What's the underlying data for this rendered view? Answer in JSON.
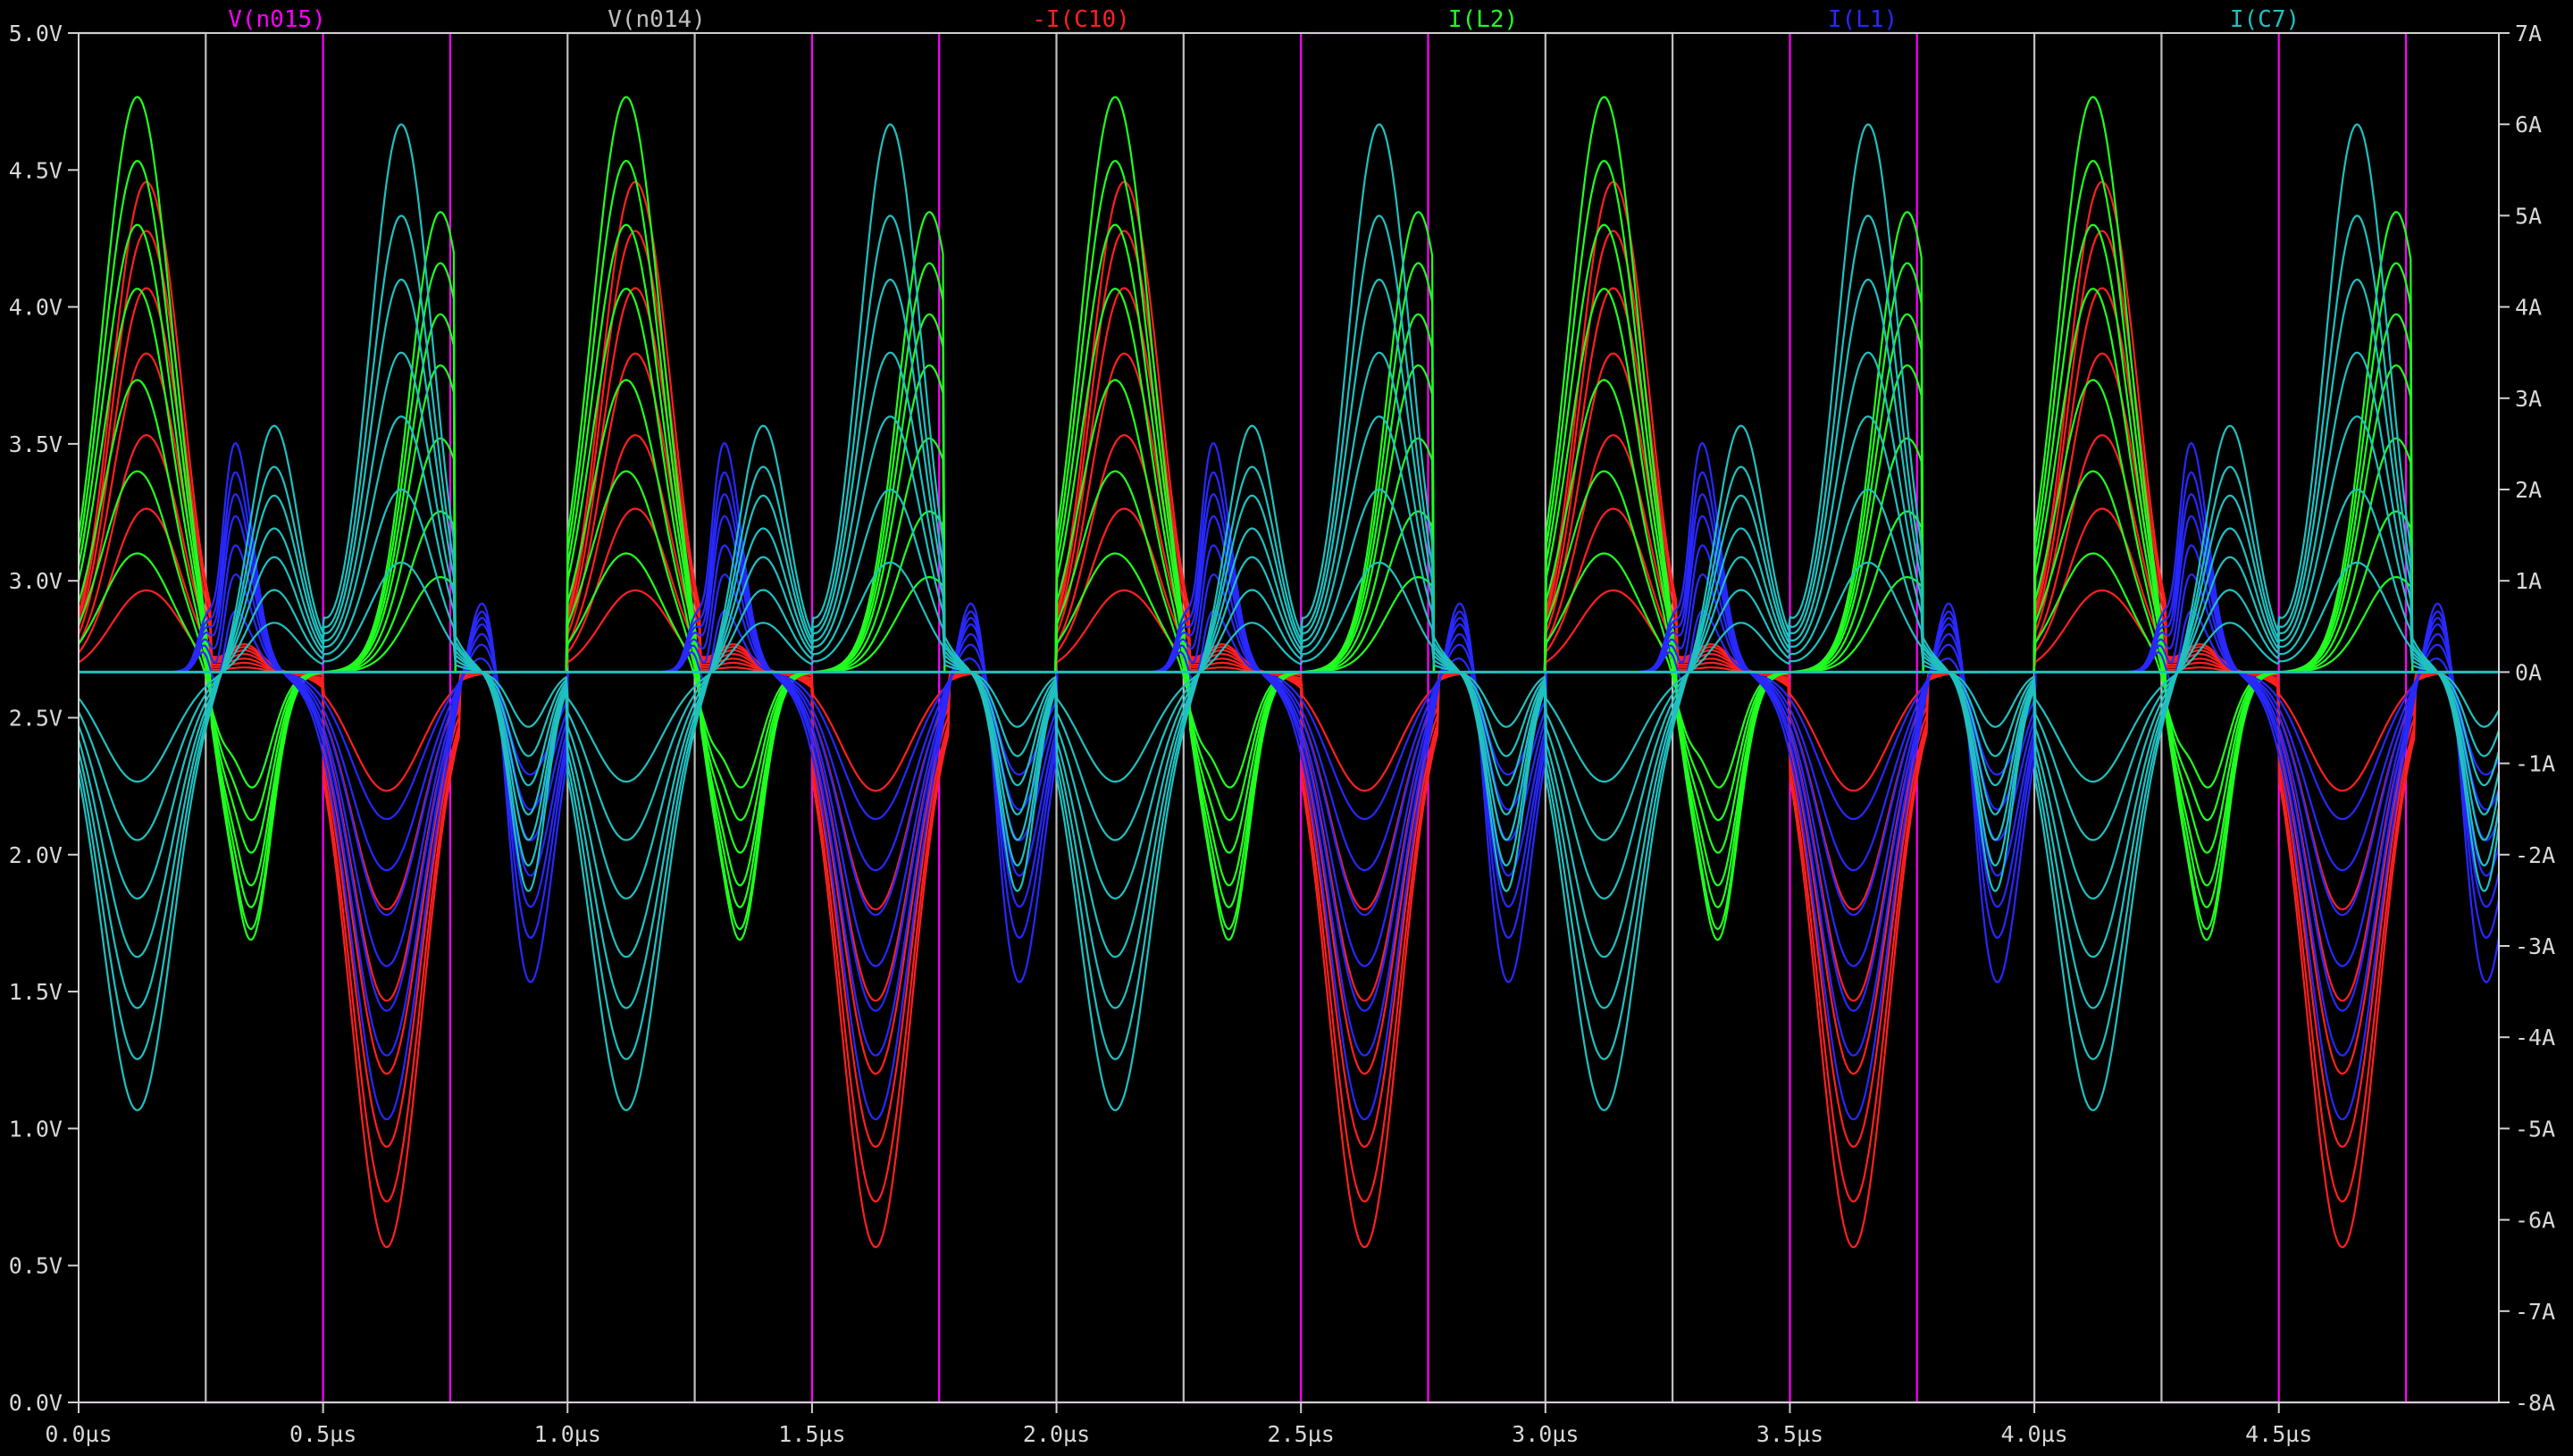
{
  "chart_data": {
    "type": "line",
    "title": "",
    "trace_labels": [
      "V(n015)",
      "V(n014)",
      "-I(C10)",
      "I(L2)",
      "I(L1)",
      "I(C7)"
    ],
    "x": {
      "unit": "µs",
      "range": [
        0.0,
        4.95
      ],
      "ticks": [
        0.0,
        0.5,
        1.0,
        1.5,
        2.0,
        2.5,
        3.0,
        3.5,
        4.0,
        4.5
      ],
      "tick_labels": [
        "0.0µs",
        "0.5µs",
        "1.0µs",
        "1.5µs",
        "2.0µs",
        "2.5µs",
        "3.0µs",
        "3.5µs",
        "4.0µs",
        "4.5µs"
      ]
    },
    "y_left": {
      "unit": "V",
      "range": [
        0.0,
        5.0
      ],
      "ticks": [
        0.0,
        0.5,
        1.0,
        1.5,
        2.0,
        2.5,
        3.0,
        3.5,
        4.0,
        4.5,
        5.0
      ],
      "tick_labels": [
        "0.0V",
        "0.5V",
        "1.0V",
        "1.5V",
        "2.0V",
        "2.5V",
        "3.0V",
        "3.5V",
        "4.0V",
        "4.5V",
        "5.0V"
      ]
    },
    "y_right": {
      "unit": "A",
      "range": [
        -8,
        7
      ],
      "ticks": [
        7,
        6,
        5,
        4,
        3,
        2,
        1,
        0,
        -1,
        -2,
        -3,
        -4,
        -5,
        -6,
        -7,
        -8
      ],
      "tick_labels": [
        "7A",
        "6A",
        "5A",
        "4A",
        "3A",
        "2A",
        "1A",
        "0A",
        "-1A",
        "-2A",
        "-3A",
        "-4A",
        "-5A",
        "-6A",
        "-7A",
        "-8A"
      ]
    },
    "grid": false,
    "series": [
      {
        "name": "V(n015)",
        "color": "#ff00ff",
        "axis": "left",
        "kind": "square",
        "low": 0.0,
        "high": 5.0,
        "period_us": 1.0,
        "rise_us": [
          0.5,
          1.5,
          2.5,
          3.5,
          4.5
        ],
        "fall_us": [
          0.76,
          1.76,
          2.76,
          3.76,
          4.76
        ]
      },
      {
        "name": "V(n014)",
        "color": "#c0c0c0",
        "axis": "left",
        "kind": "square",
        "low": 0.0,
        "high": 5.0,
        "period_us": 1.0,
        "rise_us": [
          0.0,
          1.0,
          2.0,
          3.0,
          4.0
        ],
        "fall_us": [
          0.26,
          1.26,
          2.26,
          3.26,
          4.26
        ]
      },
      {
        "name": "-I(C10)",
        "color": "#ff2020",
        "axis": "right",
        "kind": "bundle",
        "peak_pos_A": [
          1.0,
          2.0,
          2.9,
          3.9,
          4.7,
          5.4,
          6.0
        ],
        "peak_neg_A": [
          -1.3,
          -2.6,
          -3.6,
          -4.4,
          -5.2,
          -5.8,
          -6.3
        ],
        "period_us": 1.0
      },
      {
        "name": "I(L2)",
        "color": "#20ff20",
        "axis": "right",
        "kind": "bundle",
        "peak_pos_A": [
          1.3,
          2.2,
          3.2,
          4.2,
          4.9,
          5.6,
          6.3
        ],
        "peak_neg_A": [
          -2.2,
          -2.8,
          -3.4,
          -4.0,
          -4.4,
          -4.8,
          -5.0
        ],
        "period_us": 1.0
      },
      {
        "name": "I(L1)",
        "color": "#2828ff",
        "axis": "right",
        "kind": "bundle",
        "peak_pos_A": [
          0.8,
          1.3,
          1.7,
          2.1,
          2.4,
          2.7,
          3.1
        ],
        "peak_neg_A": [
          -2.3,
          -3.1,
          -3.8,
          -4.6,
          -5.3,
          -6.0,
          -7.0
        ],
        "period_us": 1.0
      },
      {
        "name": "I(C7)",
        "color": "#20c0c0",
        "axis": "right",
        "kind": "bundle",
        "peak_pos_A": [
          1.2,
          2.0,
          2.8,
          3.5,
          4.3,
          5.0,
          6.0
        ],
        "peak_neg_A": [
          -1.5,
          -2.3,
          -3.1,
          -3.9,
          -4.6,
          -5.3,
          -6.0
        ],
        "period_us": 1.0
      }
    ]
  }
}
